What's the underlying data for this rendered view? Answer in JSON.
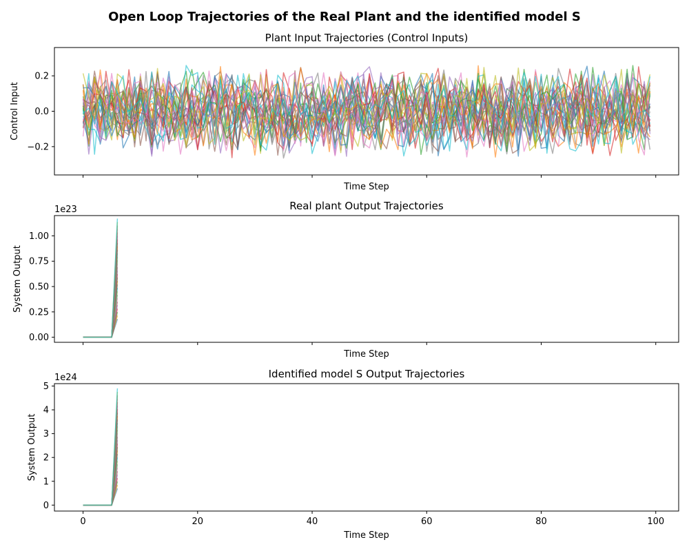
{
  "figure": {
    "suptitle": "Open Loop Trajectories of the Real Plant and the identified model S"
  },
  "palette": [
    "#1f77b4",
    "#ff7f0e",
    "#2ca02c",
    "#d62728",
    "#9467bd",
    "#8c564b",
    "#e377c2",
    "#7f7f7f",
    "#bcbd22",
    "#17becf"
  ],
  "chart_data": [
    {
      "type": "line",
      "title": "Plant Input Trajectories (Control Inputs)",
      "xlabel": "Time Step",
      "ylabel": "Control Input",
      "xlim": [
        -5,
        104
      ],
      "ylim": [
        -0.36,
        0.36
      ],
      "xticks": [
        0,
        20,
        40,
        60,
        80,
        100
      ],
      "yticks": [
        -0.2,
        0.0,
        0.2
      ],
      "ytick_labels": [
        "−0.2",
        "0.0",
        "0.2"
      ],
      "show_xtick_labels": false,
      "offset_label": "",
      "n_series": 30,
      "x_range": [
        0,
        99
      ],
      "value_range": [
        -0.33,
        0.33
      ],
      "note": "random trajectories, roughly uniform noise within ±0.3"
    },
    {
      "type": "line",
      "title": "Real plant Output Trajectories",
      "xlabel": "Time Step",
      "ylabel": "System Output",
      "xlim": [
        -5,
        104
      ],
      "ylim": [
        -0.05,
        1.2
      ],
      "xticks": [
        0,
        20,
        40,
        60,
        80,
        100
      ],
      "yticks": [
        0.0,
        0.25,
        0.5,
        0.75,
        1.0
      ],
      "ytick_labels": [
        "0.00",
        "0.25",
        "0.50",
        "0.75",
        "1.00"
      ],
      "show_xtick_labels": false,
      "offset_label": "1e23",
      "n_series": 30,
      "flat_until_x": 5,
      "spike_x": 6,
      "spike_range": [
        0.18,
        1.17
      ]
    },
    {
      "type": "line",
      "title": "Identified model S Output Trajectories",
      "xlabel": "Time Step",
      "ylabel": "System Output",
      "xlim": [
        -5,
        104
      ],
      "ylim": [
        -0.25,
        5.1
      ],
      "xticks": [
        0,
        20,
        40,
        60,
        80,
        100
      ],
      "yticks": [
        0,
        1,
        2,
        3,
        4,
        5
      ],
      "ytick_labels": [
        "0",
        "1",
        "2",
        "3",
        "4",
        "5"
      ],
      "show_xtick_labels": true,
      "xtick_labels": [
        "0",
        "20",
        "40",
        "60",
        "80",
        "100"
      ],
      "offset_label": "1e24",
      "n_series": 30,
      "flat_until_x": 5,
      "spike_x": 6,
      "spike_range": [
        0.7,
        4.9
      ]
    }
  ]
}
